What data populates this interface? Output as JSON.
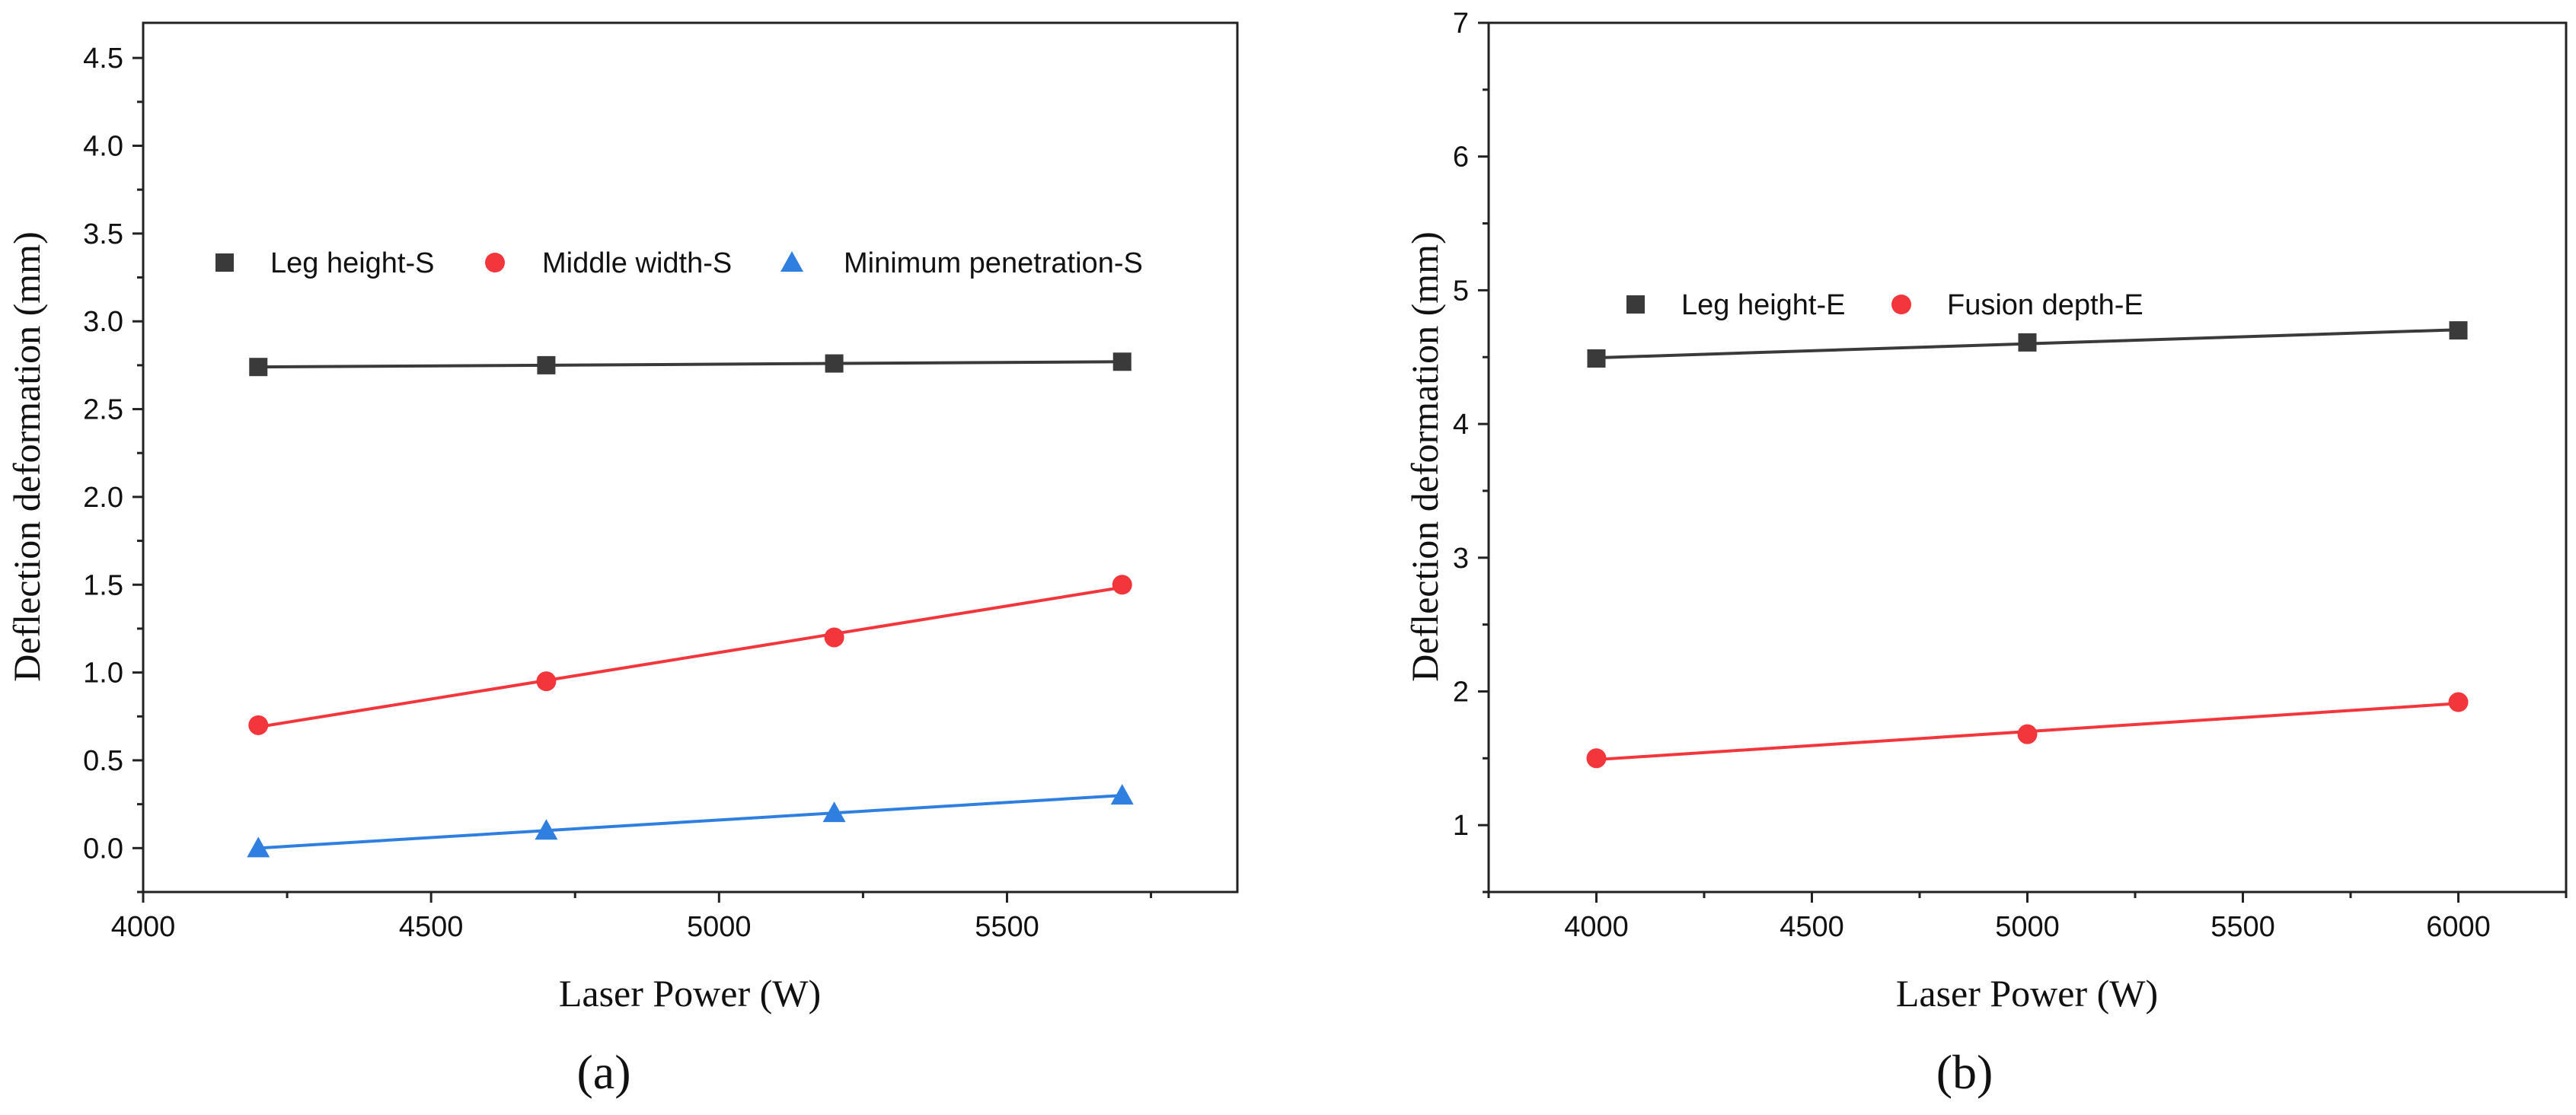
{
  "chart_data": [
    {
      "type": "line",
      "panel_label": "(a)",
      "xlabel": "Laser Power (W)",
      "ylabel": "Deflection deformation (mm)",
      "xlim": [
        4000,
        5900
      ],
      "ylim": [
        -0.25,
        4.7
      ],
      "xticks": [
        4000,
        4500,
        5000,
        5500
      ],
      "xtick_labels": [
        "4000",
        "4500",
        "5000",
        "5500"
      ],
      "yticks": [
        0.0,
        0.5,
        1.0,
        1.5,
        2.0,
        2.5,
        3.0,
        3.5,
        4.0,
        4.5
      ],
      "ytick_labels": [
        "0.0",
        "0.5",
        "1.0",
        "1.5",
        "2.0",
        "2.5",
        "3.0",
        "3.5",
        "4.0",
        "4.5"
      ],
      "legend_position": "upper-middle, single row",
      "x": [
        4200,
        4700,
        5200,
        5700
      ],
      "series": [
        {
          "name": "Leg height-S",
          "marker": "square",
          "color": "#3a3a3a",
          "values": [
            2.74,
            2.75,
            2.76,
            2.77
          ]
        },
        {
          "name": "Middle width-S",
          "marker": "circle",
          "color": "#f2363c",
          "values": [
            0.7,
            0.95,
            1.2,
            1.5
          ]
        },
        {
          "name": "Minimum penetration-S",
          "marker": "triangle",
          "color": "#2f7fe0",
          "values": [
            0.0,
            0.1,
            0.2,
            0.3
          ]
        }
      ]
    },
    {
      "type": "line",
      "panel_label": "(b)",
      "xlabel": "Laser Power (W)",
      "ylabel": "Deflection deformation (mm)",
      "xlim": [
        3750,
        6250
      ],
      "ylim": [
        0.5,
        7.0
      ],
      "xticks": [
        4000,
        4500,
        5000,
        5500,
        6000
      ],
      "xtick_labels": [
        "4000",
        "4500",
        "5000",
        "5500",
        "6000"
      ],
      "yticks": [
        1,
        2,
        3,
        4,
        5,
        6,
        7
      ],
      "ytick_labels": [
        "1",
        "2",
        "3",
        "4",
        "5",
        "6",
        "7"
      ],
      "legend_position": "upper-left, single row",
      "x": [
        4000,
        5000,
        6000
      ],
      "series": [
        {
          "name": "Leg height-E",
          "marker": "square",
          "color": "#3a3a3a",
          "values": [
            4.49,
            4.61,
            4.7
          ]
        },
        {
          "name": "Fusion depth-E",
          "marker": "circle",
          "color": "#f2363c",
          "values": [
            1.5,
            1.68,
            1.92
          ]
        }
      ]
    }
  ]
}
